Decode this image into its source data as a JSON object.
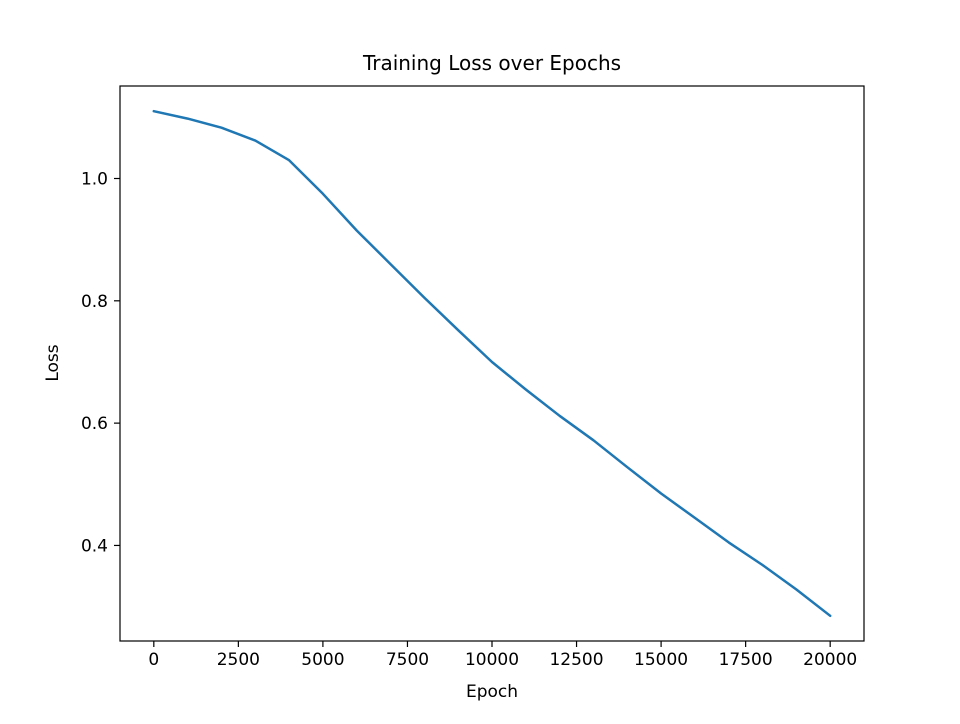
{
  "figure": {
    "background": "#ffffff",
    "axes_edge_color": "#000000",
    "text_color": "#000000"
  },
  "chart_data": {
    "type": "line",
    "title": "Training Loss over Epochs",
    "xlabel": "Epoch",
    "ylabel": "Loss",
    "grid": false,
    "legend": null,
    "line_color": "#1f77b4",
    "line_width": 2.5,
    "x": [
      0,
      1000,
      2000,
      3000,
      4000,
      5000,
      6000,
      7000,
      8000,
      9000,
      10000,
      11000,
      12000,
      13000,
      14000,
      15000,
      16000,
      17000,
      18000,
      19000,
      20000
    ],
    "y": [
      1.11,
      1.098,
      1.083,
      1.062,
      1.03,
      0.975,
      0.915,
      0.86,
      0.805,
      0.752,
      0.7,
      0.655,
      0.612,
      0.572,
      0.528,
      0.485,
      0.445,
      0.405,
      0.368,
      0.328,
      0.285
    ],
    "xlim": [
      -1000,
      21000
    ],
    "ylim": [
      0.24375,
      1.15125
    ],
    "xticks": [
      0,
      2500,
      5000,
      7500,
      10000,
      12500,
      15000,
      17500,
      20000
    ],
    "xtick_labels": [
      "0",
      "2500",
      "5000",
      "7500",
      "10000",
      "12500",
      "15000",
      "17500",
      "20000"
    ],
    "yticks": [
      0.4,
      0.6,
      0.8,
      1.0
    ],
    "ytick_labels": [
      "0.4",
      "0.6",
      "0.8",
      "1.0"
    ]
  }
}
